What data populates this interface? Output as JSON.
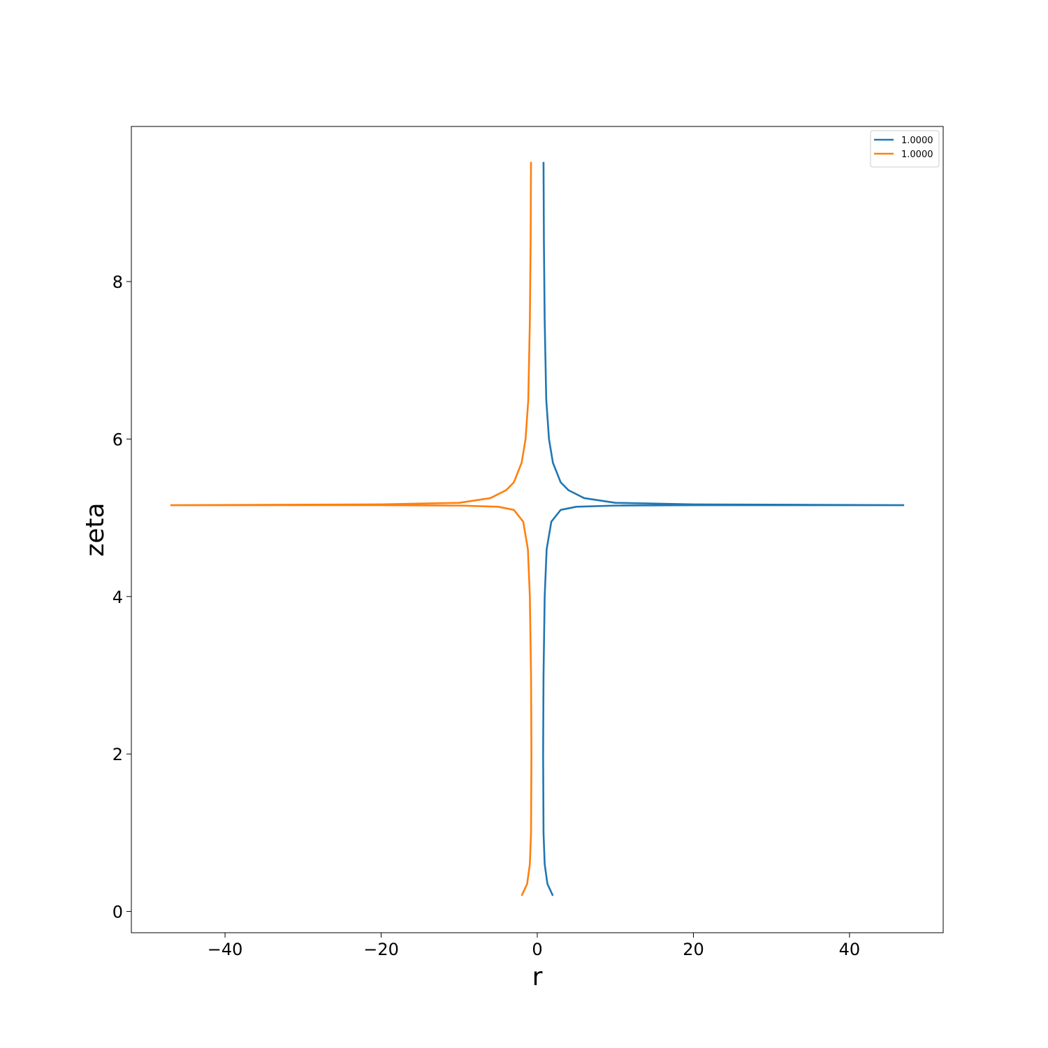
{
  "chart_data": {
    "type": "line",
    "xlabel": "r",
    "ylabel": "zeta",
    "xlim": [
      -52,
      52
    ],
    "ylim": [
      -0.27,
      9.97
    ],
    "xticks": [
      -40,
      -20,
      0,
      20,
      40
    ],
    "xtick_labels": [
      "−40",
      "−20",
      "0",
      "20",
      "40"
    ],
    "yticks": [
      0,
      2,
      4,
      6,
      8
    ],
    "ytick_labels": [
      "0",
      "2",
      "4",
      "6",
      "8"
    ],
    "grid": false,
    "legend_position": "top-right",
    "series": [
      {
        "name": "1.0000",
        "color": "#1f77b4",
        "points": [
          [
            0.8,
            9.52
          ],
          [
            0.85,
            8.5
          ],
          [
            0.95,
            7.5
          ],
          [
            1.15,
            6.5
          ],
          [
            1.5,
            6.0
          ],
          [
            2.0,
            5.7
          ],
          [
            3.0,
            5.45
          ],
          [
            4.0,
            5.35
          ],
          [
            6.0,
            5.25
          ],
          [
            10.0,
            5.19
          ],
          [
            20.0,
            5.17
          ],
          [
            35.0,
            5.165
          ],
          [
            47.0,
            5.16
          ],
          null,
          [
            47.0,
            5.16
          ],
          [
            20.0,
            5.16
          ],
          [
            10.0,
            5.155
          ],
          [
            5.0,
            5.14
          ],
          [
            3.0,
            5.1
          ],
          [
            1.8,
            4.95
          ],
          [
            1.2,
            4.6
          ],
          [
            0.95,
            4.0
          ],
          [
            0.8,
            3.0
          ],
          [
            0.75,
            2.0
          ],
          [
            0.8,
            1.0
          ],
          [
            0.95,
            0.6
          ],
          [
            1.3,
            0.35
          ],
          [
            2.0,
            0.2
          ]
        ]
      },
      {
        "name": "1.0000",
        "color": "#ff7f0e",
        "points": [
          [
            -0.8,
            9.52
          ],
          [
            -0.85,
            8.5
          ],
          [
            -0.95,
            7.5
          ],
          [
            -1.15,
            6.5
          ],
          [
            -1.5,
            6.0
          ],
          [
            -2.0,
            5.7
          ],
          [
            -3.0,
            5.45
          ],
          [
            -4.0,
            5.35
          ],
          [
            -6.0,
            5.25
          ],
          [
            -10.0,
            5.19
          ],
          [
            -20.0,
            5.17
          ],
          [
            -35.0,
            5.165
          ],
          [
            -47.0,
            5.16
          ],
          null,
          [
            -47.0,
            5.16
          ],
          [
            -20.0,
            5.16
          ],
          [
            -10.0,
            5.155
          ],
          [
            -5.0,
            5.14
          ],
          [
            -3.0,
            5.1
          ],
          [
            -1.8,
            4.95
          ],
          [
            -1.2,
            4.6
          ],
          [
            -0.95,
            4.0
          ],
          [
            -0.8,
            3.0
          ],
          [
            -0.75,
            2.0
          ],
          [
            -0.8,
            1.0
          ],
          [
            -0.95,
            0.6
          ],
          [
            -1.3,
            0.35
          ],
          [
            -2.0,
            0.2
          ]
        ]
      }
    ]
  }
}
